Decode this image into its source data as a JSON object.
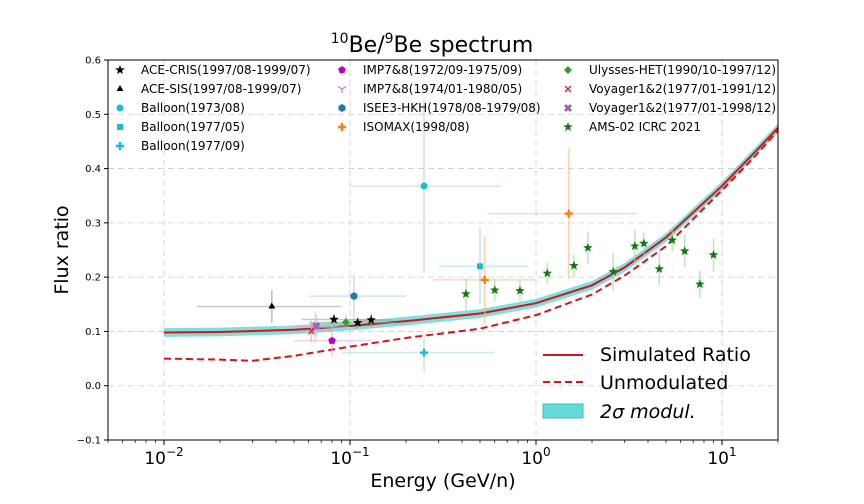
{
  "chart_data": {
    "type": "scatter",
    "title": {
      "ten": "10",
      "be1": "Be/",
      "nine": "9",
      "be2": "Be spectrum"
    },
    "xlabel": "Energy (GeV/n)",
    "ylabel": "Flux ratio",
    "xscale": "log",
    "xlim": [
      0.005,
      20
    ],
    "ylim": [
      -0.1,
      0.6
    ],
    "grid": true,
    "yticks": [
      "−0.1",
      "0.0",
      "0.1",
      "0.2",
      "0.3",
      "0.4",
      "0.5",
      "0.6"
    ],
    "ytick_values": [
      -0.1,
      0,
      0.1,
      0.2,
      0.3,
      0.4,
      0.5,
      0.6
    ],
    "xticks": [
      {
        "value": 0.01,
        "base": "10",
        "exp": "−2"
      },
      {
        "value": 0.1,
        "base": "10",
        "exp": "−1"
      },
      {
        "value": 1,
        "base": "10",
        "exp": "0"
      },
      {
        "value": 10,
        "base": "10",
        "exp": "1"
      }
    ],
    "experiments": [
      {
        "name": "ACE-CRIS(1997/08-1999/07)",
        "color": "#000000",
        "marker": "star",
        "errcolor": "#999999",
        "points": [
          [
            0.082,
            0.122,
            0.055,
            0.13,
            0.01
          ],
          [
            0.11,
            0.116,
            0.06,
            0.18,
            0.01
          ],
          [
            0.13,
            0.121,
            0.1,
            0.17,
            0.012
          ]
        ]
      },
      {
        "name": "ACE-SIS(1997/08-1999/07)",
        "color": "#000000",
        "marker": "triangle",
        "errcolor": "#999999",
        "points": [
          [
            0.038,
            0.146,
            0.015,
            0.09,
            0.03
          ]
        ]
      },
      {
        "name": "Balloon(1973/08)",
        "color": "#17becf",
        "marker": "circle",
        "errcolor": "#9edae5",
        "points": [
          [
            0.25,
            0.368,
            0.1,
            0.65,
            0.16
          ]
        ]
      },
      {
        "name": "Balloon(1977/05)",
        "color": "#17becf",
        "marker": "square",
        "errcolor": "#9edae5",
        "points": [
          [
            0.5,
            0.22,
            0.3,
            0.9,
            0.07
          ]
        ]
      },
      {
        "name": "Balloon(1977/09)",
        "color": "#17becf",
        "marker": "plus",
        "errcolor": "#9edae5",
        "points": [
          [
            0.25,
            0.061,
            0.09,
            0.6,
            0.035
          ]
        ]
      },
      {
        "name": "IMP7&8(1972/09-1975/09)",
        "color": "#c000c0",
        "marker": "pentagon",
        "errcolor": "#e6a8e6",
        "points": [
          [
            0.08,
            0.083,
            0.05,
            0.13,
            0.03
          ]
        ]
      },
      {
        "name": "IMP7&8(1974/01-1980/05)",
        "color": "#e377c2",
        "marker": "tri",
        "errcolor": "#f2c0e0",
        "points": [
          [
            0.065,
            0.108,
            0.04,
            0.1,
            0.03
          ]
        ]
      },
      {
        "name": "ISEE3-HKH(1978/08-1979/08)",
        "color": "#1f77b4",
        "marker": "hexagon",
        "errcolor": "#aec7e8",
        "points": [
          [
            0.105,
            0.165,
            0.06,
            0.2,
            0.04
          ]
        ]
      },
      {
        "name": "ISOMAX(1998/08)",
        "color": "#ff7f0e",
        "marker": "plus",
        "errcolor": "#ffbb78",
        "points": [
          [
            1.5,
            0.317,
            0.55,
            3.5,
            0.12
          ],
          [
            0.53,
            0.195,
            0.28,
            1.0,
            0.08
          ]
        ]
      },
      {
        "name": "Ulysses-HET(1990/10-1997/12)",
        "color": "#2ca02c",
        "marker": "diamond",
        "errcolor": "#98df8a",
        "points": [
          [
            0.095,
            0.117,
            0.07,
            0.13,
            0.015
          ]
        ]
      },
      {
        "name": "Voyager1&2(1977/01-1991/12)",
        "color": "#d62728",
        "marker": "x",
        "errcolor": "#ff9896",
        "points": [
          [
            0.062,
            0.1,
            0.05,
            0.08,
            0.02
          ]
        ]
      },
      {
        "name": "Voyager1&2(1977/01-1998/12)",
        "color": "#9467bd",
        "marker": "xbold",
        "errcolor": "#c5b0d5",
        "points": [
          [
            0.066,
            0.11,
            0.05,
            0.085,
            0.02
          ]
        ]
      },
      {
        "name": "AMS-02 ICRC 2021",
        "color": "#117a11",
        "marker": "star",
        "errcolor": "#98df8a",
        "points": [
          [
            0.42,
            0.169,
            0.42,
            0.42,
            0.03
          ],
          [
            0.6,
            0.176,
            0.6,
            0.6,
            0.02
          ],
          [
            0.82,
            0.175,
            0.82,
            0.82,
            0.02
          ],
          [
            1.15,
            0.207,
            1.15,
            1.15,
            0.02
          ],
          [
            1.6,
            0.221,
            1.6,
            1.6,
            0.02
          ],
          [
            1.9,
            0.254,
            1.9,
            1.9,
            0.03
          ],
          [
            2.6,
            0.21,
            2.6,
            2.6,
            0.035
          ],
          [
            3.4,
            0.257,
            3.4,
            3.4,
            0.03
          ],
          [
            3.8,
            0.262,
            3.8,
            3.8,
            0.02
          ],
          [
            4.6,
            0.215,
            4.6,
            4.6,
            0.03
          ],
          [
            5.4,
            0.268,
            5.4,
            5.4,
            0.02
          ],
          [
            6.3,
            0.248,
            6.3,
            6.3,
            0.03
          ],
          [
            7.6,
            0.187,
            7.6,
            7.6,
            0.025
          ],
          [
            9.0,
            0.241,
            9.0,
            9.0,
            0.03
          ]
        ]
      }
    ],
    "curves": [
      {
        "name": "Simulated Ratio",
        "color": "#dd1111",
        "style": "solid",
        "points": [
          [
            0.01,
            0.098
          ],
          [
            0.02,
            0.099
          ],
          [
            0.05,
            0.103
          ],
          [
            0.1,
            0.11
          ],
          [
            0.2,
            0.119
          ],
          [
            0.5,
            0.133
          ],
          [
            1,
            0.152
          ],
          [
            2,
            0.185
          ],
          [
            3,
            0.218
          ],
          [
            5,
            0.273
          ],
          [
            10,
            0.368
          ],
          [
            15,
            0.43
          ],
          [
            20,
            0.475
          ]
        ]
      },
      {
        "name": "Unmodulated",
        "color": "#dd1111",
        "style": "dashed",
        "points": [
          [
            0.01,
            0.05
          ],
          [
            0.02,
            0.048
          ],
          [
            0.03,
            0.046
          ],
          [
            0.05,
            0.055
          ],
          [
            0.1,
            0.072
          ],
          [
            0.2,
            0.088
          ],
          [
            0.5,
            0.105
          ],
          [
            1,
            0.13
          ],
          [
            2,
            0.168
          ],
          [
            3,
            0.203
          ],
          [
            5,
            0.257
          ],
          [
            10,
            0.36
          ],
          [
            15,
            0.422
          ],
          [
            20,
            0.47
          ]
        ]
      }
    ],
    "band": {
      "name": "2σ modul.",
      "color": "#66d9d9",
      "halfwidth": 0.008
    },
    "legend_bottom_right": {
      "simulated": "Simulated Ratio",
      "unmodulated": "Unmodulated",
      "band_label": "2σ modul."
    },
    "legend_top": [
      "ACE-CRIS(1997/08-1999/07)",
      "IMP7&8(1972/09-1975/09)",
      "Ulysses-HET(1990/10-1997/12)",
      "ACE-SIS(1997/08-1999/07)",
      "IMP7&8(1974/01-1980/05)",
      "Voyager1&2(1977/01-1991/12)",
      "Balloon(1973/08)",
      "ISEE3-HKH(1978/08-1979/08)",
      "Voyager1&2(1977/01-1998/12)",
      "Balloon(1977/05)",
      "ISOMAX(1998/08)",
      "AMS-02 ICRC 2021",
      "Balloon(1977/09)"
    ]
  }
}
